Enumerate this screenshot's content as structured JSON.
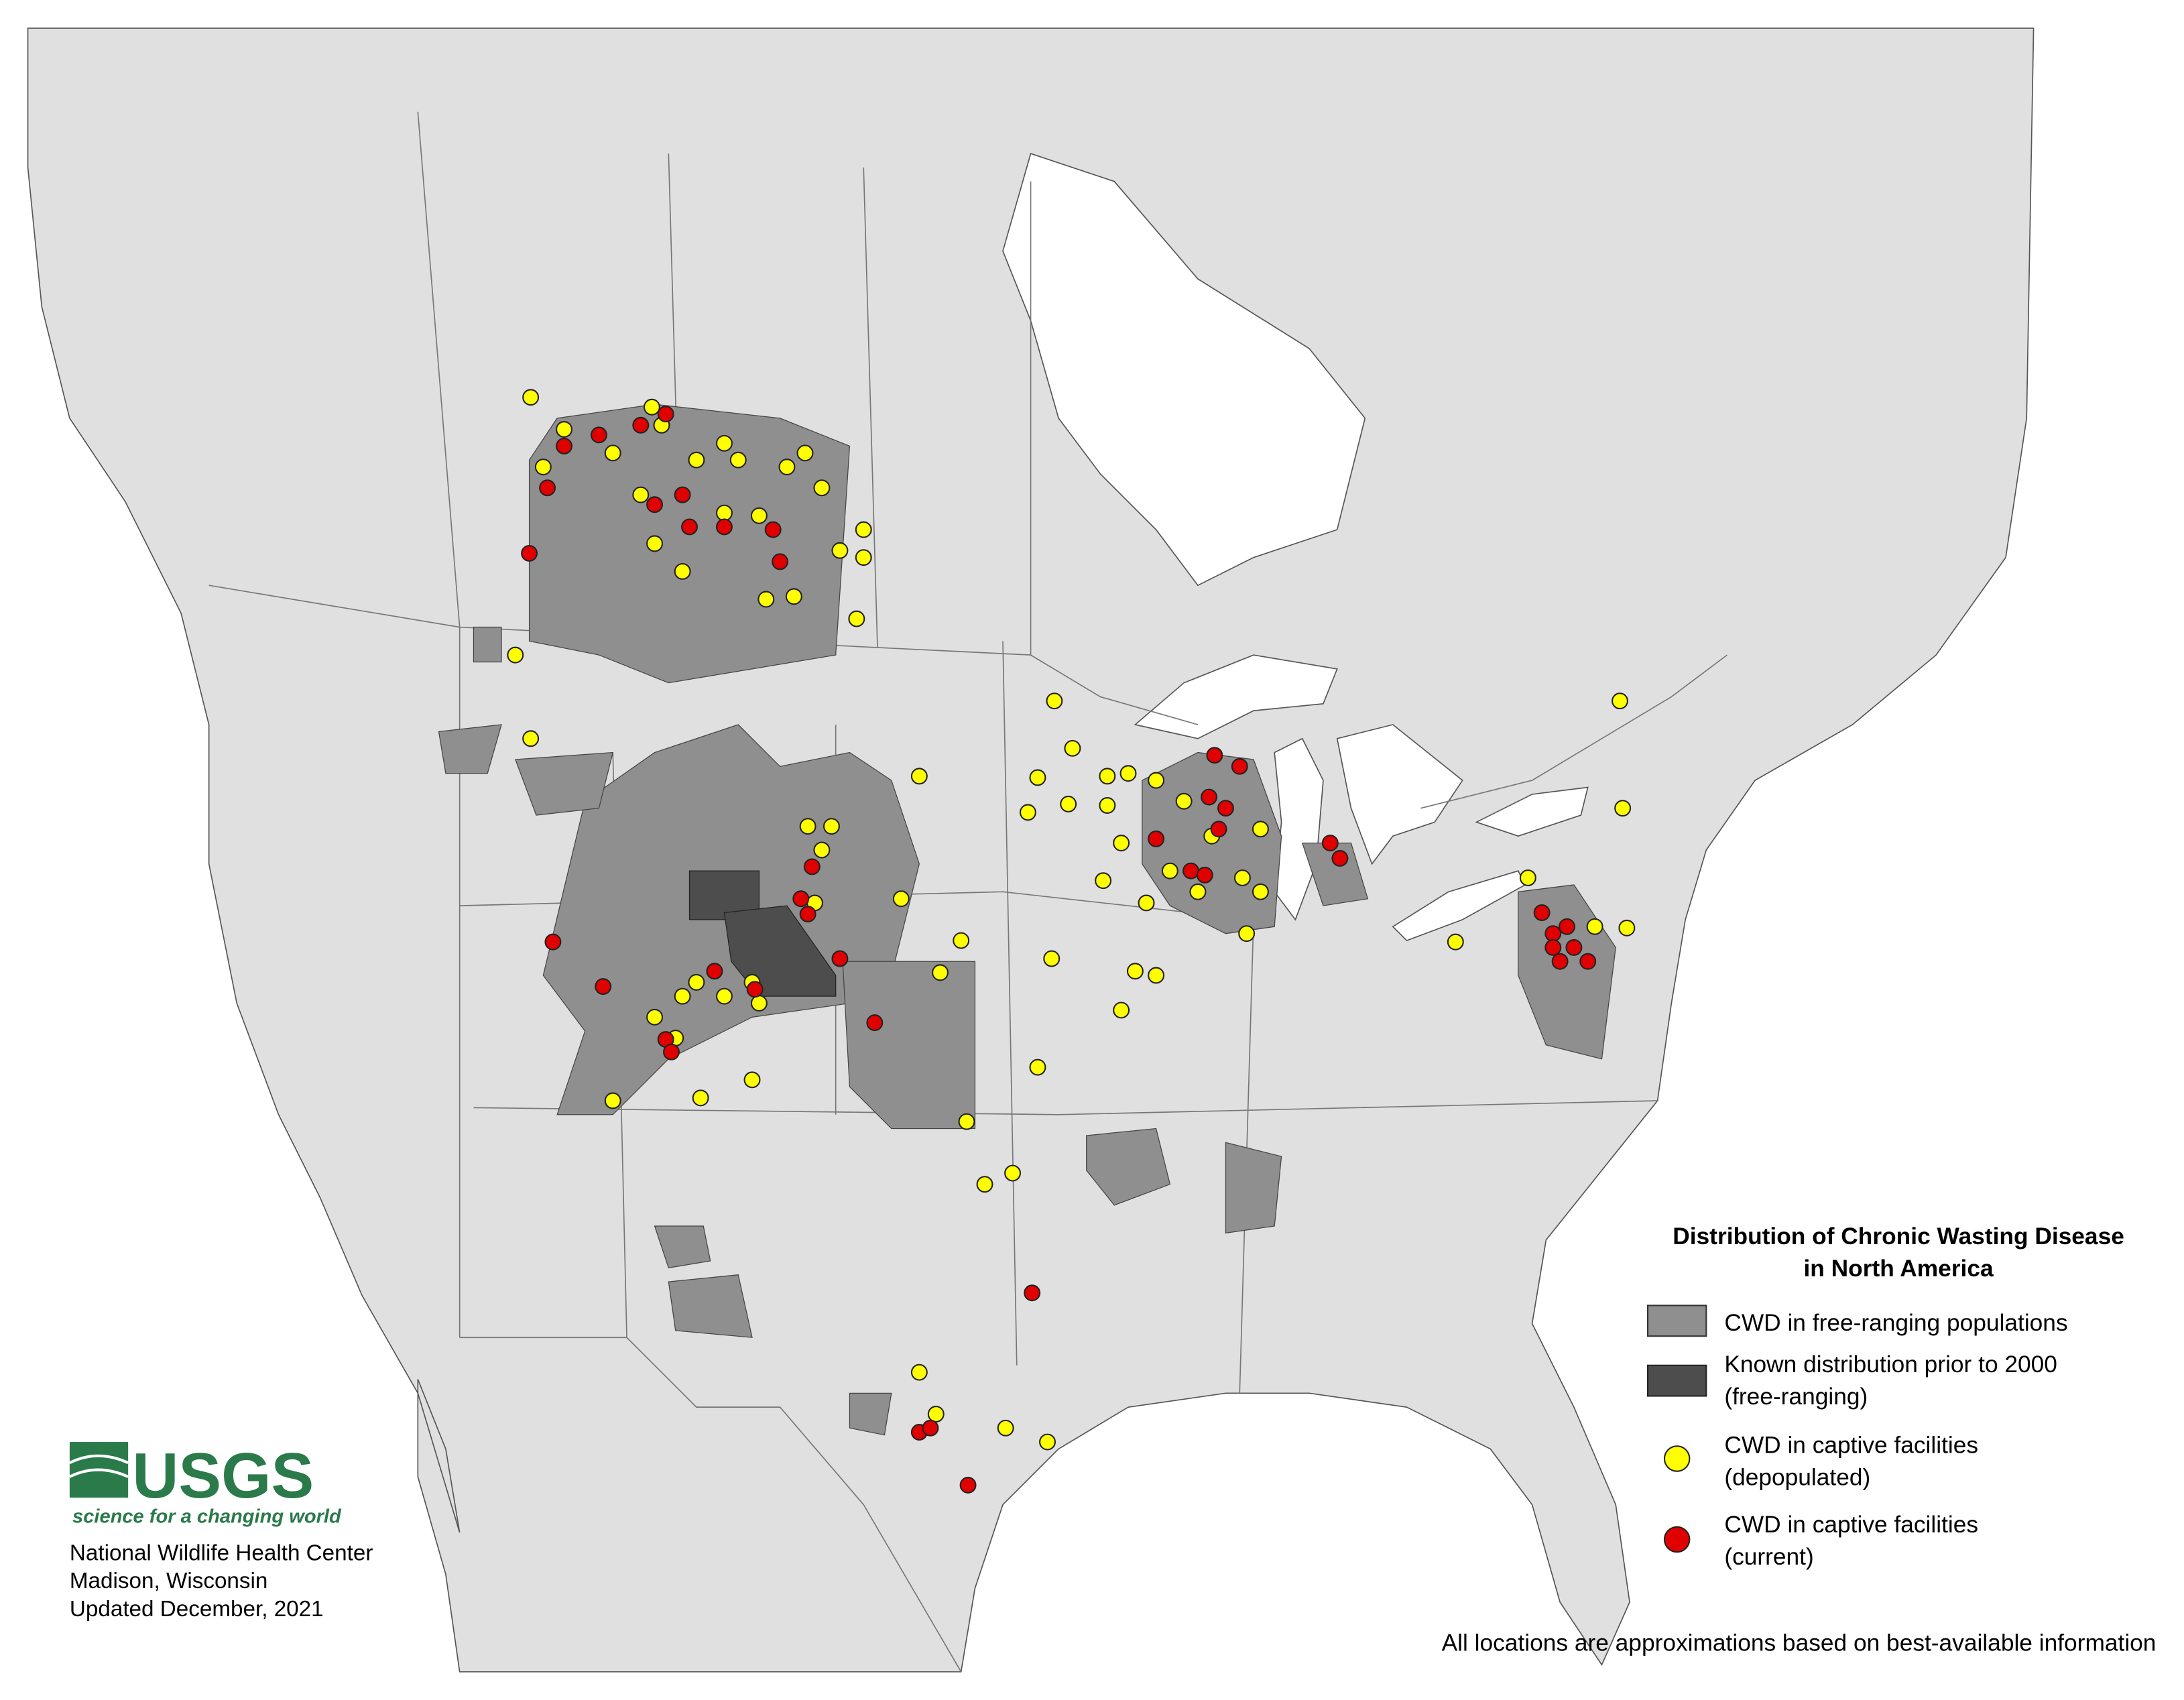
{
  "title": {
    "line1": "Distribution of Chronic Wasting Disease",
    "line2": "in North America"
  },
  "legend": {
    "items": [
      {
        "line1": "CWD in free-ranging populations"
      },
      {
        "line1": "Known distribution prior to 2000",
        "line2": "(free-ranging)"
      },
      {
        "line1": "CWD in captive facilities",
        "line2": "(depopulated)"
      },
      {
        "line1": "CWD in captive facilities",
        "line2": "(current)"
      }
    ]
  },
  "logo": {
    "name": "USGS",
    "tagline": "science for a changing world"
  },
  "credits": [
    "National Wildlife Health Center",
    "Madison, Wisconsin",
    "Updated December, 2021"
  ],
  "footnote": "All locations are approximations based on best-available information"
}
